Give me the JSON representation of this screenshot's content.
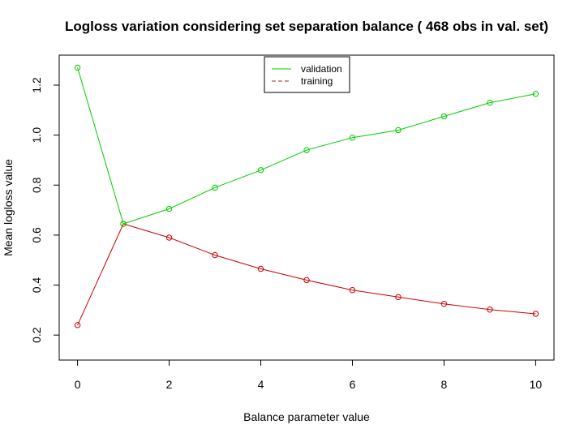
{
  "chart_data": {
    "type": "line",
    "title": "Logloss variation considering set separation balance ( 468 obs in val. set)",
    "xlabel": "Balance parameter value",
    "ylabel": "Mean logloss value",
    "x": [
      0,
      1,
      2,
      3,
      4,
      5,
      6,
      7,
      8,
      9,
      10
    ],
    "xlim": [
      -0.4,
      10.4
    ],
    "ylim": [
      0.1,
      1.32
    ],
    "x_ticks": [
      "0",
      "2",
      "4",
      "6",
      "8",
      "10"
    ],
    "y_ticks": [
      "0.2",
      "0.4",
      "0.6",
      "0.8",
      "1.0",
      "1.2"
    ],
    "series": [
      {
        "name": "validation",
        "color": "#00cc00",
        "values": [
          1.27,
          0.645,
          0.705,
          0.79,
          0.86,
          0.94,
          0.99,
          1.02,
          1.075,
          1.13,
          1.165
        ]
      },
      {
        "name": "training",
        "color": "#cc0000",
        "values": [
          0.24,
          0.645,
          0.59,
          0.52,
          0.465,
          0.42,
          0.38,
          0.352,
          0.325,
          0.302,
          0.285
        ]
      }
    ],
    "legend": {
      "placement": "top-center",
      "entries": [
        {
          "label": "validation",
          "color": "#00cc00",
          "style": "solid"
        },
        {
          "label": "training",
          "color": "#a52a2a",
          "style": "dashed"
        }
      ]
    },
    "grid": false
  }
}
